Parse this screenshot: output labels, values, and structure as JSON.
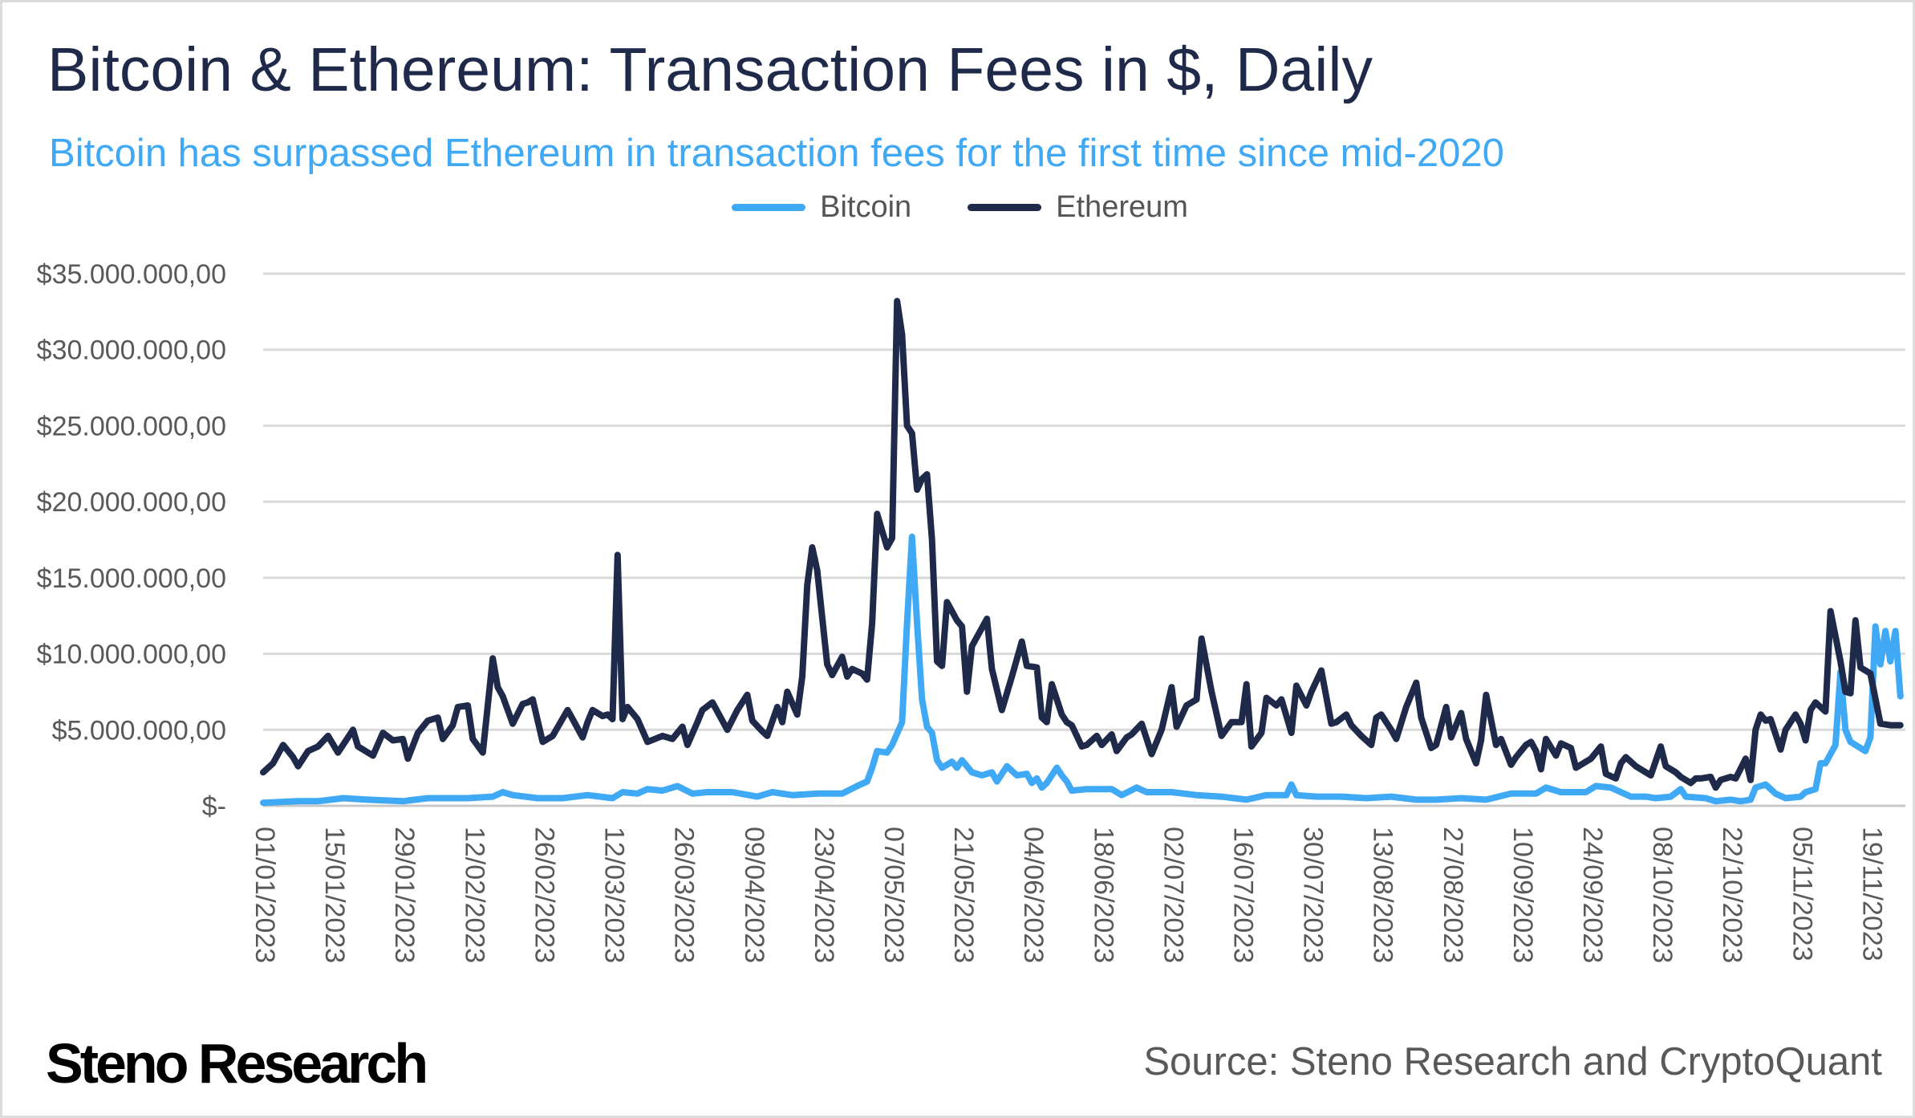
{
  "header": {
    "title": "Bitcoin & Ethereum: Transaction Fees in $, Daily",
    "subtitle": "Bitcoin has surpassed Ethereum in transaction fees for the first time since mid-2020"
  },
  "footer": {
    "logo": "Steno Research",
    "source": "Source: Steno Research and CryptoQuant"
  },
  "chart_data": {
    "type": "line",
    "title": "Bitcoin & Ethereum: Transaction Fees in $, Daily",
    "xlabel": "",
    "ylabel": "",
    "x_unit": "days since 01/01/2023",
    "xlim": [
      0,
      329
    ],
    "ylim": [
      0,
      35000000
    ],
    "y_unit": "USD millions (series values)",
    "grid": true,
    "legend_position": "top-center",
    "yticks": [
      {
        "value": 0,
        "label": "$-"
      },
      {
        "value": 5000000,
        "label": "$5.000.000,00"
      },
      {
        "value": 10000000,
        "label": "$10.000.000,00"
      },
      {
        "value": 15000000,
        "label": "$15.000.000,00"
      },
      {
        "value": 20000000,
        "label": "$20.000.000,00"
      },
      {
        "value": 25000000,
        "label": "$25.000.000,00"
      },
      {
        "value": 30000000,
        "label": "$30.000.000,00"
      },
      {
        "value": 35000000,
        "label": "$35.000.000,00"
      }
    ],
    "xticks": [
      {
        "day": 0,
        "label": "01/01/2023"
      },
      {
        "day": 14,
        "label": "15/01/2023"
      },
      {
        "day": 28,
        "label": "29/01/2023"
      },
      {
        "day": 42,
        "label": "12/02/2023"
      },
      {
        "day": 56,
        "label": "26/02/2023"
      },
      {
        "day": 70,
        "label": "12/03/2023"
      },
      {
        "day": 84,
        "label": "26/03/2023"
      },
      {
        "day": 98,
        "label": "09/04/2023"
      },
      {
        "day": 112,
        "label": "23/04/2023"
      },
      {
        "day": 126,
        "label": "07/05/2023"
      },
      {
        "day": 140,
        "label": "21/05/2023"
      },
      {
        "day": 154,
        "label": "04/06/2023"
      },
      {
        "day": 168,
        "label": "18/06/2023"
      },
      {
        "day": 182,
        "label": "02/07/2023"
      },
      {
        "day": 196,
        "label": "16/07/2023"
      },
      {
        "day": 210,
        "label": "30/07/2023"
      },
      {
        "day": 224,
        "label": "13/08/2023"
      },
      {
        "day": 238,
        "label": "27/08/2023"
      },
      {
        "day": 252,
        "label": "10/09/2023"
      },
      {
        "day": 266,
        "label": "24/09/2023"
      },
      {
        "day": 280,
        "label": "08/10/2023"
      },
      {
        "day": 294,
        "label": "22/10/2023"
      },
      {
        "day": 308,
        "label": "05/11/2023"
      },
      {
        "day": 322,
        "label": "19/11/2023"
      }
    ],
    "series": [
      {
        "name": "Bitcoin",
        "color": "#3fa9f5",
        "x": [
          0,
          7,
          11,
          16,
          21,
          28,
          33,
          41,
          46,
          48,
          50,
          55,
          60,
          65,
          70,
          72,
          75,
          77,
          80,
          83,
          86,
          89,
          94,
          99,
          102,
          106,
          111,
          116,
          119,
          121,
          122,
          123,
          125,
          126,
          128,
          129,
          130,
          131,
          132,
          133,
          134,
          135,
          136,
          138,
          139,
          140,
          142,
          144,
          146,
          147,
          149,
          151,
          153,
          154,
          155,
          156,
          157,
          159,
          160,
          161,
          162,
          165,
          170,
          172,
          175,
          177,
          182,
          187,
          192,
          197,
          201,
          205,
          206,
          207,
          211,
          216,
          221,
          226,
          231,
          235,
          240,
          245,
          250,
          255,
          257,
          260,
          265,
          267,
          270,
          272,
          274,
          277,
          279,
          282,
          284,
          285,
          289,
          291,
          294,
          296,
          298,
          299,
          301,
          303,
          305,
          308,
          309,
          311,
          312,
          313,
          315,
          316,
          317,
          318,
          321,
          322,
          323,
          324,
          325,
          326,
          327,
          328
        ],
        "values": [
          0.2,
          0.3,
          0.3,
          0.5,
          0.4,
          0.3,
          0.5,
          0.5,
          0.6,
          0.9,
          0.7,
          0.5,
          0.5,
          0.7,
          0.5,
          0.9,
          0.8,
          1.1,
          1.0,
          1.3,
          0.8,
          0.9,
          0.9,
          0.6,
          0.9,
          0.7,
          0.8,
          0.8,
          1.3,
          1.6,
          2.5,
          3.6,
          3.5,
          4.0,
          5.5,
          12.0,
          17.7,
          12.0,
          7.0,
          5.2,
          4.8,
          3.0,
          2.5,
          2.9,
          2.5,
          3.0,
          2.2,
          2.0,
          2.2,
          1.6,
          2.6,
          2.0,
          2.1,
          1.5,
          1.8,
          1.2,
          1.5,
          2.5,
          2.0,
          1.6,
          1.0,
          1.1,
          1.1,
          0.7,
          1.2,
          0.9,
          0.9,
          0.7,
          0.6,
          0.4,
          0.7,
          0.7,
          1.4,
          0.7,
          0.6,
          0.6,
          0.5,
          0.6,
          0.4,
          0.4,
          0.5,
          0.4,
          0.8,
          0.8,
          1.2,
          0.9,
          0.9,
          1.3,
          1.2,
          0.9,
          0.6,
          0.6,
          0.5,
          0.6,
          1.1,
          0.6,
          0.5,
          0.3,
          0.4,
          0.3,
          0.4,
          1.2,
          1.4,
          0.8,
          0.5,
          0.6,
          0.9,
          1.1,
          2.8,
          2.8,
          4.0,
          8.8,
          5.0,
          4.2,
          3.6,
          4.5,
          11.8,
          9.3,
          11.5,
          9.5,
          11.5,
          7.2
        ]
      },
      {
        "name": "Ethereum",
        "color": "#1f2a4a",
        "x": [
          0,
          2,
          4,
          6,
          7,
          9,
          11,
          13,
          15,
          18,
          19,
          22,
          24,
          26,
          28,
          29,
          31,
          33,
          35,
          36,
          38,
          39,
          41,
          42,
          44,
          46,
          47,
          48,
          50,
          52,
          53,
          54,
          56,
          58,
          61,
          62,
          64,
          65,
          66,
          68,
          69,
          70,
          71,
          72,
          73,
          75,
          77,
          80,
          82,
          84,
          85,
          87,
          88,
          90,
          92,
          93,
          95,
          97,
          98,
          100,
          101,
          103,
          104,
          105,
          107,
          108,
          109,
          110,
          111,
          113,
          114,
          116,
          117,
          118,
          120,
          121,
          122,
          123,
          125,
          126,
          127,
          128,
          129,
          130,
          131,
          132,
          133,
          134,
          135,
          136,
          137,
          139,
          140,
          141,
          142,
          145,
          146,
          148,
          150,
          152,
          153,
          155,
          156,
          157,
          158,
          160,
          161,
          162,
          164,
          165,
          167,
          168,
          170,
          171,
          173,
          174,
          176,
          177,
          178,
          180,
          182,
          183,
          185,
          187,
          188,
          190,
          192,
          194,
          196,
          197,
          198,
          200,
          201,
          203,
          204,
          206,
          207,
          209,
          210,
          212,
          214,
          215,
          217,
          218,
          220,
          222,
          223,
          224,
          226,
          227,
          229,
          231,
          232,
          234,
          235,
          237,
          238,
          240,
          241,
          243,
          244,
          245,
          247,
          248,
          250,
          251,
          253,
          254,
          255,
          256,
          257,
          259,
          260,
          262,
          263,
          265,
          266,
          268,
          269,
          271,
          272,
          273,
          275,
          276,
          278,
          280,
          281,
          283,
          284,
          286,
          287,
          288,
          290,
          291,
          292,
          294,
          295,
          297,
          298,
          299,
          300,
          301,
          302,
          304,
          305,
          307,
          308,
          309,
          310,
          311,
          313,
          314,
          316,
          317,
          318,
          319,
          320,
          322,
          324,
          326,
          328
        ],
        "values": [
          2.2,
          2.8,
          4.0,
          3.2,
          2.6,
          3.6,
          3.9,
          4.6,
          3.5,
          5.0,
          3.9,
          3.3,
          4.8,
          4.3,
          4.4,
          3.1,
          4.8,
          5.6,
          5.8,
          4.4,
          5.3,
          6.5,
          6.6,
          4.4,
          3.5,
          9.7,
          7.8,
          7.2,
          5.4,
          6.7,
          6.8,
          7.0,
          4.2,
          4.6,
          6.3,
          5.7,
          4.5,
          5.5,
          6.3,
          5.9,
          6.0,
          5.7,
          16.5,
          5.7,
          6.5,
          5.7,
          4.2,
          4.6,
          4.4,
          5.2,
          4.0,
          5.5,
          6.3,
          6.8,
          5.6,
          5.0,
          6.3,
          7.3,
          5.6,
          4.9,
          4.6,
          6.5,
          5.5,
          7.5,
          6.0,
          8.5,
          14.5,
          17.0,
          15.5,
          9.3,
          8.6,
          9.8,
          8.5,
          9.0,
          8.7,
          8.3,
          12.0,
          19.2,
          17.0,
          17.6,
          33.2,
          31.0,
          25.0,
          24.5,
          20.8,
          21.5,
          21.8,
          17.5,
          9.5,
          9.2,
          13.4,
          12.2,
          11.8,
          7.5,
          10.5,
          12.3,
          9.0,
          6.3,
          8.5,
          10.8,
          9.2,
          9.1,
          5.8,
          5.5,
          8.0,
          6.0,
          5.5,
          5.3,
          3.9,
          4.0,
          4.6,
          4.0,
          4.7,
          3.6,
          4.5,
          4.7,
          5.4,
          4.4,
          3.4,
          5.0,
          7.8,
          5.2,
          6.6,
          7.0,
          11.0,
          7.5,
          4.6,
          5.5,
          5.5,
          8.0,
          3.9,
          4.8,
          7.1,
          6.6,
          7.0,
          4.8,
          7.9,
          6.6,
          7.5,
          8.9,
          5.4,
          5.5,
          6.0,
          5.3,
          4.6,
          4.0,
          5.8,
          6.0,
          5.0,
          4.4,
          6.5,
          8.1,
          5.8,
          3.8,
          4.0,
          6.5,
          4.5,
          6.1,
          4.4,
          2.8,
          4.3,
          7.3,
          4.0,
          4.4,
          2.7,
          3.2,
          4.0,
          4.2,
          3.6,
          2.4,
          4.4,
          3.3,
          4.1,
          3.8,
          2.5,
          2.9,
          3.1,
          3.9,
          2.1,
          1.8,
          2.8,
          3.2,
          2.6,
          2.4,
          2.0,
          3.9,
          2.6,
          2.2,
          1.9,
          1.5,
          1.8,
          1.8,
          1.9,
          1.2,
          1.7,
          1.9,
          1.8,
          3.1,
          1.7,
          5.0,
          6.0,
          5.6,
          5.7,
          3.7,
          5.0,
          6.0,
          5.4,
          4.3,
          6.3,
          6.8,
          6.2,
          12.8,
          9.5,
          7.5,
          7.4,
          12.2,
          9.1,
          8.7,
          5.4,
          5.3,
          5.3
        ]
      }
    ]
  }
}
